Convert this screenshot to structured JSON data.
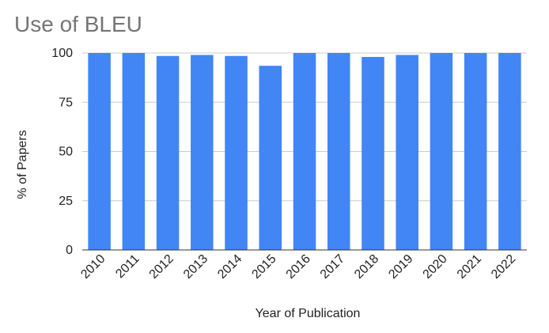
{
  "chart_data": {
    "type": "bar",
    "title": "Use of BLEU",
    "xlabel": "Year of Publication",
    "ylabel": "% of Papers",
    "categories": [
      "2010",
      "2011",
      "2012",
      "2013",
      "2014",
      "2015",
      "2016",
      "2017",
      "2018",
      "2019",
      "2020",
      "2021",
      "2022"
    ],
    "values": [
      100,
      100,
      98.5,
      99,
      98.5,
      93.5,
      100,
      100,
      98,
      99,
      100,
      100,
      100
    ],
    "ylim": [
      0,
      100
    ],
    "yticks": [
      0,
      25,
      50,
      75,
      100
    ],
    "grid": true,
    "bar_color": "#4285f4"
  }
}
